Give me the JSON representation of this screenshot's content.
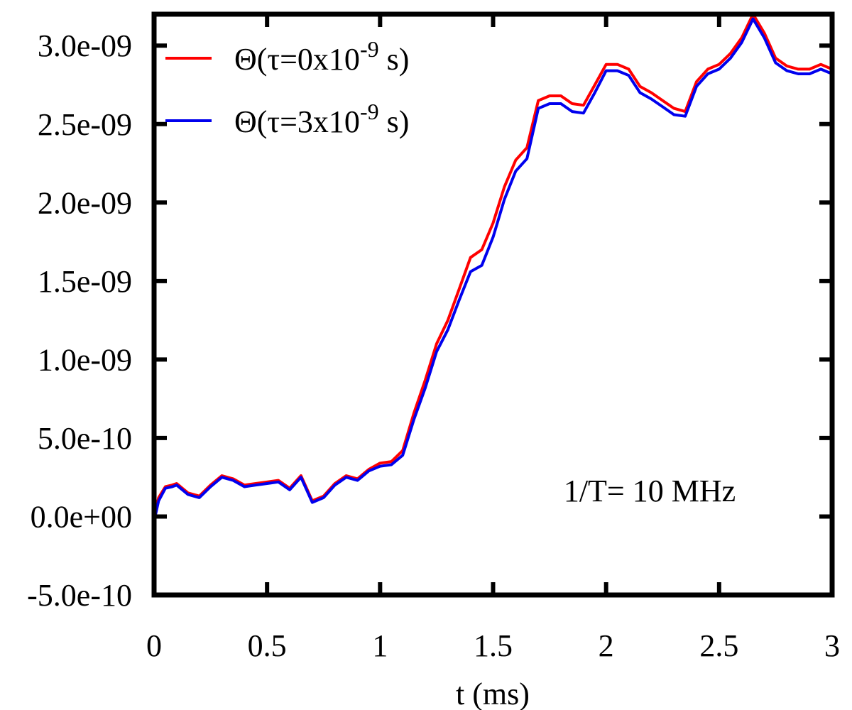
{
  "chart_data": {
    "type": "line",
    "title": "",
    "xlabel": "t (ms)",
    "ylabel": "",
    "xlim": [
      0,
      3
    ],
    "ylim": [
      -5e-10,
      3.2e-09
    ],
    "x_ticks": [
      {
        "value": 0,
        "label": "0"
      },
      {
        "value": 0.5,
        "label": "0.5"
      },
      {
        "value": 1,
        "label": "1"
      },
      {
        "value": 1.5,
        "label": "1.5"
      },
      {
        "value": 2,
        "label": "2"
      },
      {
        "value": 2.5,
        "label": "2.5"
      },
      {
        "value": 3,
        "label": "3"
      }
    ],
    "y_ticks": [
      {
        "value": -5e-10,
        "label": "-5.0e-10"
      },
      {
        "value": 0,
        "label": "0.0e+00"
      },
      {
        "value": 5e-10,
        "label": "5.0e-10"
      },
      {
        "value": 1e-09,
        "label": "1.0e-09"
      },
      {
        "value": 1.5e-09,
        "label": "1.5e-09"
      },
      {
        "value": 2e-09,
        "label": "2.0e-09"
      },
      {
        "value": 2.5e-09,
        "label": "2.5e-09"
      },
      {
        "value": 3e-09,
        "label": "3.0e-09"
      }
    ],
    "grid": false,
    "legend_position": "top-left",
    "annotation": "1/T= 10 MHz",
    "x": [
      0,
      0.02,
      0.05,
      0.08,
      0.1,
      0.15,
      0.2,
      0.25,
      0.3,
      0.35,
      0.4,
      0.45,
      0.5,
      0.55,
      0.6,
      0.65,
      0.7,
      0.75,
      0.8,
      0.85,
      0.9,
      0.95,
      1.0,
      1.05,
      1.1,
      1.15,
      1.2,
      1.25,
      1.3,
      1.35,
      1.4,
      1.45,
      1.5,
      1.55,
      1.6,
      1.65,
      1.7,
      1.75,
      1.8,
      1.85,
      1.9,
      1.95,
      2.0,
      2.05,
      2.1,
      2.15,
      2.2,
      2.25,
      2.3,
      2.35,
      2.4,
      2.45,
      2.5,
      2.55,
      2.6,
      2.65,
      2.7,
      2.75,
      2.8,
      2.85,
      2.9,
      2.95,
      3.0
    ],
    "series": [
      {
        "name": "Θ(τ=0x10-9 s)",
        "name_parts": {
          "prefix": "Θ(τ=0x10",
          "exponent": "-9",
          "suffix": " s)"
        },
        "color": "#ff0000",
        "values": [
          -1e-11,
          1.2e-10,
          1.9e-10,
          2e-10,
          2.1e-10,
          1.5e-10,
          1.3e-10,
          2e-10,
          2.6e-10,
          2.4e-10,
          2e-10,
          2.1e-10,
          2.2e-10,
          2.3e-10,
          1.8e-10,
          2.6e-10,
          1e-10,
          1.3e-10,
          2.1e-10,
          2.6e-10,
          2.4e-10,
          3e-10,
          3.4e-10,
          3.5e-10,
          4.2e-10,
          6.6e-10,
          8.7e-10,
          1.1e-09,
          1.25e-09,
          1.45e-09,
          1.65e-09,
          1.7e-09,
          1.87e-09,
          2.1e-09,
          2.27e-09,
          2.35e-09,
          2.65e-09,
          2.68e-09,
          2.68e-09,
          2.63e-09,
          2.62e-09,
          2.75e-09,
          2.88e-09,
          2.88e-09,
          2.85e-09,
          2.74e-09,
          2.7e-09,
          2.65e-09,
          2.6e-09,
          2.58e-09,
          2.77e-09,
          2.85e-09,
          2.88e-09,
          2.95e-09,
          3.05e-09,
          3.2e-09,
          3.08e-09,
          2.92e-09,
          2.87e-09,
          2.85e-09,
          2.85e-09,
          2.88e-09,
          2.85e-09
        ]
      },
      {
        "name": "Θ(τ=3x10-9 s)",
        "name_parts": {
          "prefix": "Θ(τ=3x10",
          "exponent": "-9",
          "suffix": " s)"
        },
        "color": "#0000ee",
        "values": [
          -3e-11,
          1e-10,
          1.8e-10,
          1.9e-10,
          2e-10,
          1.4e-10,
          1.2e-10,
          1.9e-10,
          2.5e-10,
          2.3e-10,
          1.9e-10,
          2e-10,
          2.1e-10,
          2.2e-10,
          1.7e-10,
          2.5e-10,
          9e-11,
          1.2e-10,
          2e-10,
          2.5e-10,
          2.3e-10,
          2.9e-10,
          3.2e-10,
          3.3e-10,
          3.9e-10,
          6.2e-10,
          8.2e-10,
          1.05e-09,
          1.19e-09,
          1.38e-09,
          1.56e-09,
          1.6e-09,
          1.78e-09,
          2.02e-09,
          2.2e-09,
          2.28e-09,
          2.6e-09,
          2.63e-09,
          2.63e-09,
          2.58e-09,
          2.57e-09,
          2.7e-09,
          2.84e-09,
          2.84e-09,
          2.81e-09,
          2.7e-09,
          2.66e-09,
          2.61e-09,
          2.56e-09,
          2.55e-09,
          2.74e-09,
          2.82e-09,
          2.85e-09,
          2.92e-09,
          3.02e-09,
          3.17e-09,
          3.05e-09,
          2.89e-09,
          2.84e-09,
          2.82e-09,
          2.82e-09,
          2.85e-09,
          2.82e-09
        ]
      }
    ]
  }
}
